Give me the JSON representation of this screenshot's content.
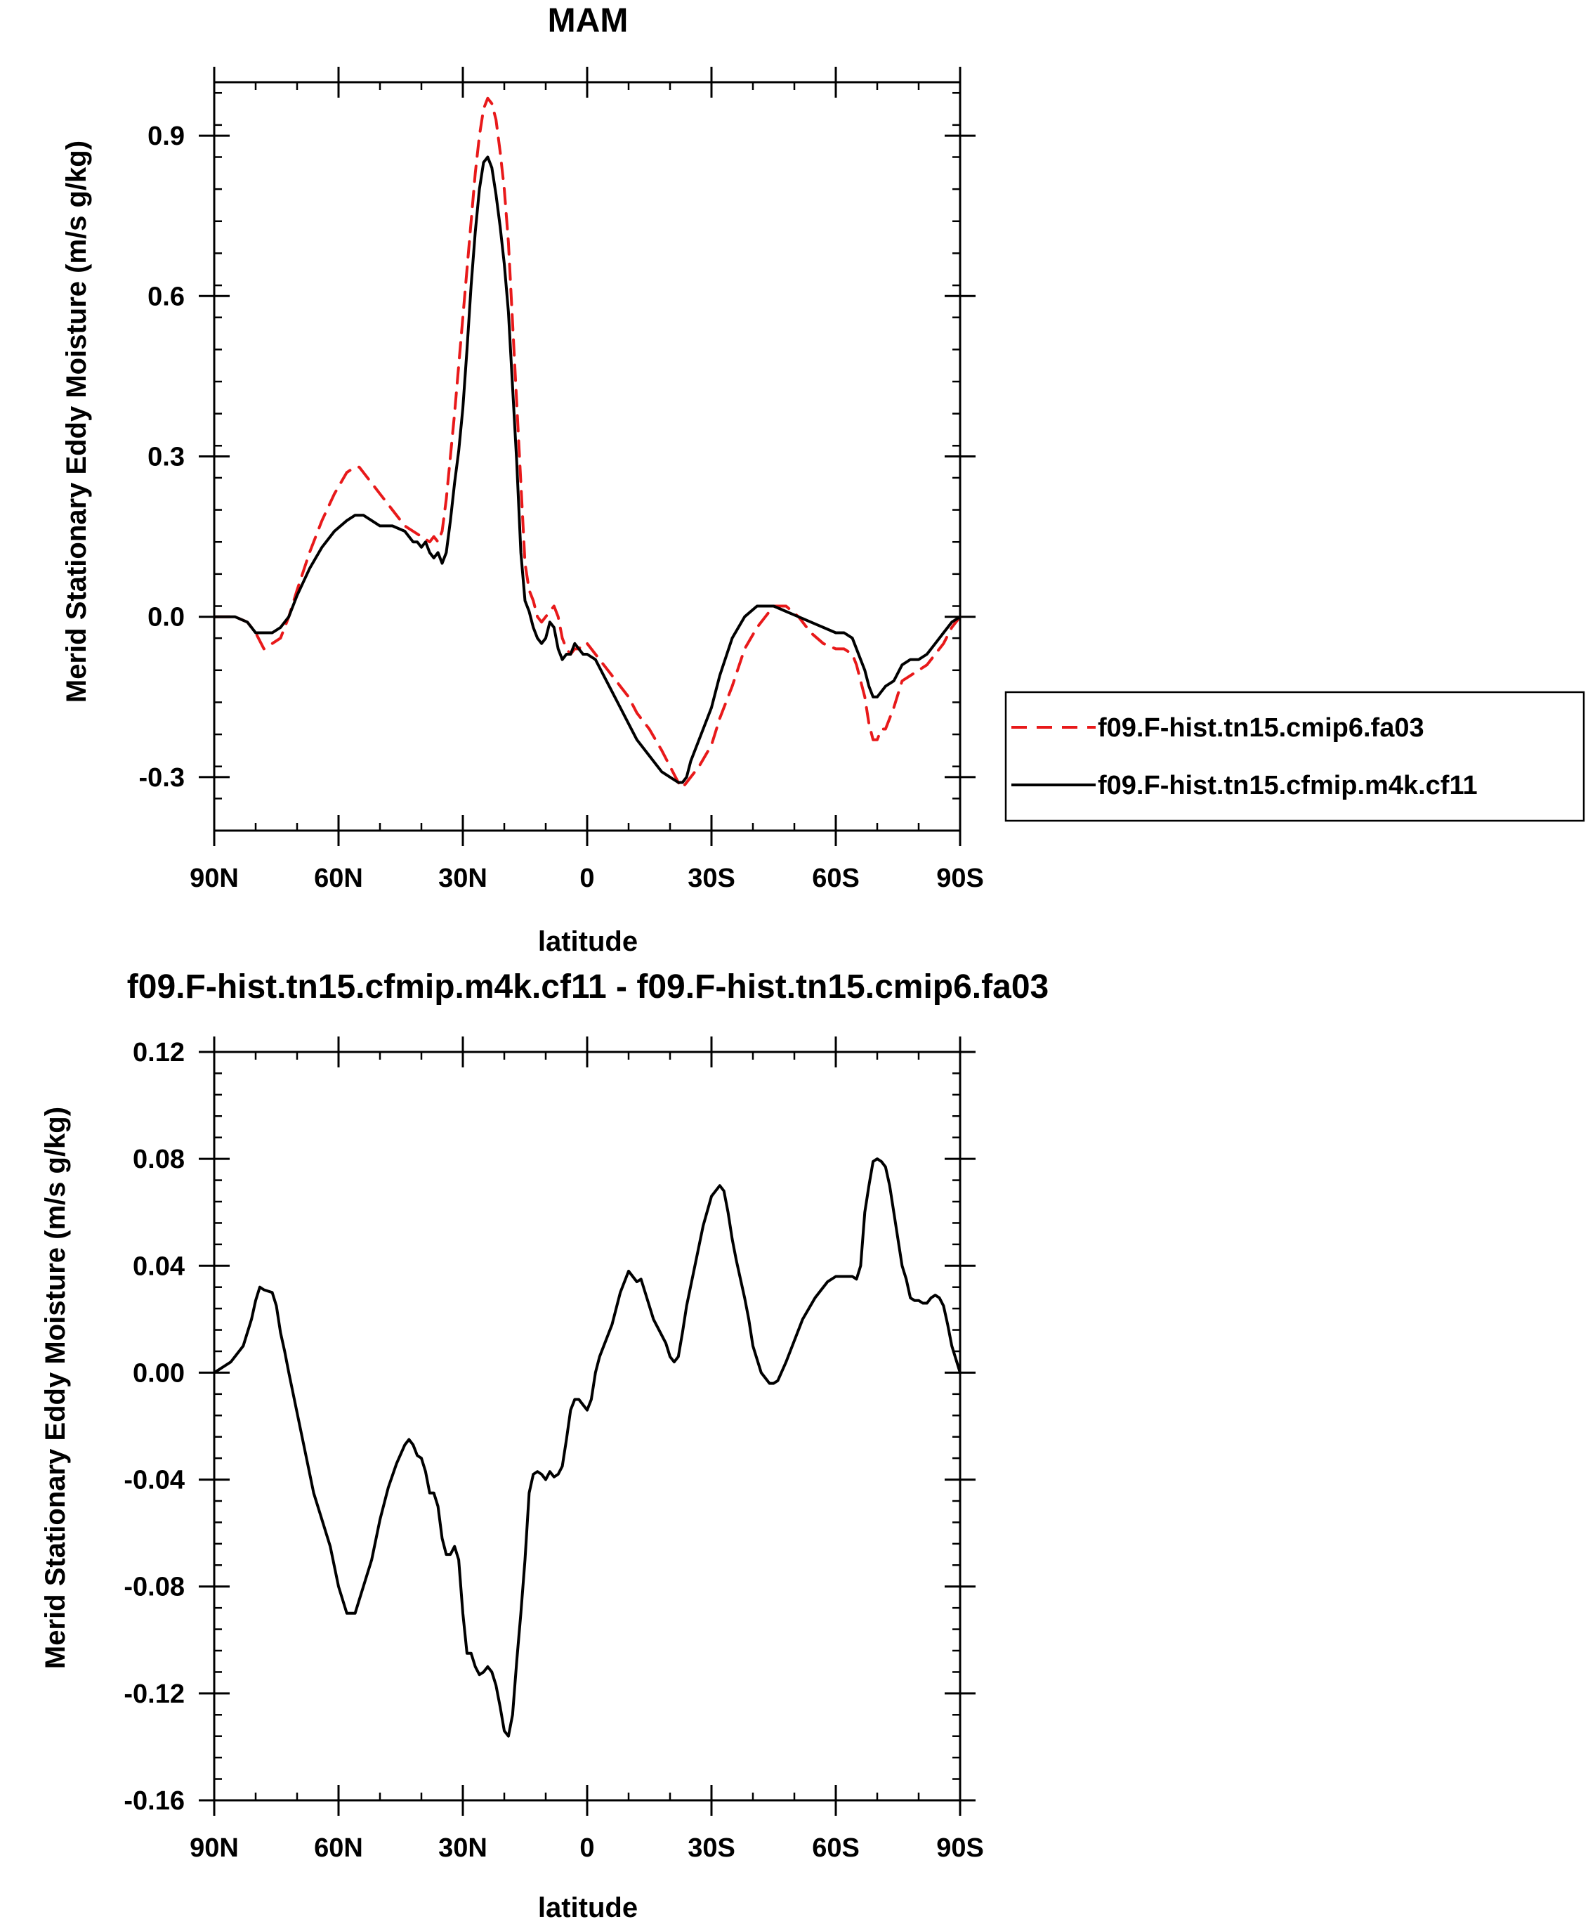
{
  "chart_data": [
    {
      "type": "line",
      "title": "MAM",
      "xlabel": "latitude",
      "ylabel": "Merid Stationary Eddy Moisture (m/s g/kg)",
      "xlim": [
        90,
        -90
      ],
      "ylim": [
        -0.4,
        1.0
      ],
      "xticks": [
        90,
        60,
        30,
        0,
        -30,
        -60,
        -90
      ],
      "xtick_labels": [
        "90N",
        "60N",
        "30N",
        "0",
        "30S",
        "60S",
        "90S"
      ],
      "yticks": [
        -0.3,
        0.0,
        0.3,
        0.6,
        0.9
      ],
      "ytick_labels": [
        "-0.3",
        "0.0",
        "0.3",
        "0.6",
        "0.9"
      ],
      "grid": false,
      "legend_position": "right-outside",
      "series": [
        {
          "name": "f09.F-hist.tn15.cmip6.fa03",
          "color": "#e8191a",
          "dash": "dashed",
          "x": [
            90,
            85,
            82,
            80,
            78,
            76,
            74,
            72,
            70,
            67,
            64,
            61,
            58,
            56,
            55,
            54,
            52,
            50,
            47,
            44,
            42,
            40,
            38,
            37,
            36,
            35,
            34,
            33,
            32,
            31,
            30,
            29,
            28,
            27,
            26,
            25,
            24,
            23,
            22,
            21,
            20,
            19,
            18,
            17,
            16,
            15,
            14,
            13,
            12,
            11,
            10,
            9,
            8,
            7,
            6,
            5,
            4,
            3,
            2,
            1,
            0,
            -2,
            -4,
            -6,
            -8,
            -10,
            -12,
            -15,
            -18,
            -20,
            -22,
            -23,
            -24,
            -25,
            -27,
            -30,
            -32,
            -35,
            -38,
            -41,
            -43,
            -45,
            -48,
            -51,
            -54,
            -57,
            -60,
            -62,
            -64,
            -65,
            -67,
            -68,
            -69,
            -70,
            -71,
            -72,
            -74,
            -76,
            -78,
            -80,
            -82,
            -84,
            -86,
            -88,
            -90
          ],
          "y": [
            0.0,
            0.0,
            -0.01,
            -0.03,
            -0.06,
            -0.05,
            -0.04,
            0.0,
            0.05,
            0.12,
            0.18,
            0.23,
            0.27,
            0.28,
            0.28,
            0.27,
            0.25,
            0.23,
            0.2,
            0.17,
            0.16,
            0.15,
            0.14,
            0.15,
            0.14,
            0.16,
            0.22,
            0.3,
            0.38,
            0.47,
            0.56,
            0.65,
            0.74,
            0.83,
            0.9,
            0.95,
            0.97,
            0.96,
            0.93,
            0.87,
            0.8,
            0.7,
            0.55,
            0.4,
            0.25,
            0.1,
            0.05,
            0.03,
            0.0,
            -0.01,
            0.0,
            0.01,
            0.02,
            0.0,
            -0.04,
            -0.06,
            -0.07,
            -0.06,
            -0.06,
            -0.05,
            -0.05,
            -0.07,
            -0.09,
            -0.11,
            -0.13,
            -0.15,
            -0.18,
            -0.21,
            -0.25,
            -0.28,
            -0.31,
            -0.32,
            -0.31,
            -0.3,
            -0.28,
            -0.24,
            -0.19,
            -0.13,
            -0.06,
            -0.02,
            0.0,
            0.02,
            0.02,
            0.0,
            -0.03,
            -0.05,
            -0.06,
            -0.06,
            -0.07,
            -0.09,
            -0.15,
            -0.2,
            -0.23,
            -0.23,
            -0.21,
            -0.21,
            -0.17,
            -0.12,
            -0.11,
            -0.1,
            -0.09,
            -0.07,
            -0.05,
            -0.02,
            0.0
          ]
        },
        {
          "name": "f09.F-hist.tn15.cfmip.m4k.cf11",
          "color": "#000000",
          "dash": "solid",
          "x": [
            90,
            85,
            82,
            80,
            78,
            76,
            74,
            72,
            70,
            67,
            64,
            61,
            58,
            56,
            55,
            54,
            52,
            50,
            47,
            44,
            42,
            41,
            40,
            39,
            38,
            37,
            36,
            35,
            34,
            33,
            32,
            31,
            30,
            29,
            28,
            27,
            26,
            25,
            24,
            23,
            22,
            21,
            20,
            19,
            18,
            17,
            16,
            15,
            14,
            13,
            12,
            11,
            10,
            9,
            8,
            7,
            6,
            5,
            4,
            3,
            2,
            1,
            0,
            -2,
            -4,
            -6,
            -8,
            -10,
            -12,
            -15,
            -18,
            -20,
            -22,
            -23,
            -24,
            -25,
            -27,
            -30,
            -32,
            -35,
            -38,
            -41,
            -43,
            -45,
            -48,
            -51,
            -54,
            -57,
            -60,
            -62,
            -64,
            -65,
            -66,
            -67,
            -68,
            -69,
            -70,
            -71,
            -72,
            -74,
            -76,
            -78,
            -80,
            -82,
            -84,
            -86,
            -88,
            -90
          ],
          "y": [
            0.0,
            0.0,
            -0.01,
            -0.03,
            -0.03,
            -0.03,
            -0.02,
            0.0,
            0.04,
            0.09,
            0.13,
            0.16,
            0.18,
            0.19,
            0.19,
            0.19,
            0.18,
            0.17,
            0.17,
            0.16,
            0.14,
            0.14,
            0.13,
            0.14,
            0.12,
            0.11,
            0.12,
            0.1,
            0.12,
            0.18,
            0.25,
            0.31,
            0.39,
            0.5,
            0.62,
            0.72,
            0.8,
            0.85,
            0.86,
            0.84,
            0.79,
            0.73,
            0.66,
            0.57,
            0.43,
            0.29,
            0.12,
            0.03,
            0.01,
            -0.02,
            -0.04,
            -0.05,
            -0.04,
            -0.01,
            -0.02,
            -0.06,
            -0.08,
            -0.07,
            -0.07,
            -0.05,
            -0.06,
            -0.07,
            -0.07,
            -0.08,
            -0.11,
            -0.14,
            -0.17,
            -0.2,
            -0.23,
            -0.26,
            -0.29,
            -0.3,
            -0.31,
            -0.31,
            -0.3,
            -0.27,
            -0.23,
            -0.17,
            -0.11,
            -0.04,
            0.0,
            0.02,
            0.02,
            0.02,
            0.01,
            0.0,
            -0.01,
            -0.02,
            -0.03,
            -0.03,
            -0.04,
            -0.06,
            -0.08,
            -0.1,
            -0.13,
            -0.15,
            -0.15,
            -0.14,
            -0.13,
            -0.12,
            -0.09,
            -0.08,
            -0.08,
            -0.07,
            -0.05,
            -0.03,
            -0.01,
            0.0
          ]
        }
      ]
    },
    {
      "type": "line",
      "title": "f09.F-hist.tn15.cfmip.m4k.cf11 - f09.F-hist.tn15.cmip6.fa03",
      "xlabel": "latitude",
      "ylabel": "Merid Stationary Eddy Moisture (m/s g/kg)",
      "xlim": [
        90,
        -90
      ],
      "ylim": [
        -0.16,
        0.12
      ],
      "xticks": [
        90,
        60,
        30,
        0,
        -30,
        -60,
        -90
      ],
      "xtick_labels": [
        "90N",
        "60N",
        "30N",
        "0",
        "30S",
        "60S",
        "90S"
      ],
      "yticks": [
        -0.16,
        -0.12,
        -0.08,
        -0.04,
        0.0,
        0.04,
        0.08,
        0.12
      ],
      "ytick_labels": [
        "-0.16",
        "-0.12",
        "-0.08",
        "-0.04",
        "0.00",
        "0.04",
        "0.08",
        "0.12"
      ],
      "grid": false,
      "series": [
        {
          "color": "#000000",
          "dash": "solid",
          "x": [
            90,
            86,
            83,
            81,
            80,
            79,
            78,
            76,
            75,
            74,
            73,
            72,
            70,
            68,
            66,
            64,
            62,
            60,
            58,
            56,
            55,
            54,
            52,
            50,
            48,
            46,
            44,
            43,
            42,
            41,
            40,
            39,
            38,
            37,
            36,
            35,
            34,
            33,
            32,
            31,
            30,
            29,
            28,
            27,
            26,
            25,
            24,
            23,
            22,
            21,
            20,
            19,
            18,
            17,
            16,
            15,
            14,
            13,
            12,
            11,
            10,
            9,
            8,
            7,
            6,
            5,
            4,
            3,
            2,
            1,
            0,
            -1,
            -2,
            -3,
            -4,
            -5,
            -6,
            -8,
            -10,
            -12,
            -13,
            -14,
            -15,
            -16,
            -17,
            -18,
            -19,
            -20,
            -21,
            -22,
            -23,
            -24,
            -26,
            -28,
            -30,
            -32,
            -33,
            -34,
            -35,
            -36,
            -37,
            -38,
            -39,
            -40,
            -42,
            -44,
            -45,
            -46,
            -48,
            -50,
            -52,
            -55,
            -58,
            -60,
            -62,
            -64,
            -65,
            -66,
            -67,
            -68,
            -69,
            -70,
            -71,
            -72,
            -73,
            -74,
            -75,
            -76,
            -77,
            -78,
            -79,
            -80,
            -81,
            -82,
            -83,
            -84,
            -85,
            -86,
            -87,
            -88,
            -89,
            -90
          ],
          "y": [
            0.0,
            0.004,
            0.01,
            0.02,
            0.027,
            0.032,
            0.031,
            0.03,
            0.025,
            0.015,
            0.008,
            0.0,
            -0.015,
            -0.03,
            -0.045,
            -0.055,
            -0.065,
            -0.08,
            -0.09,
            -0.09,
            -0.085,
            -0.08,
            -0.07,
            -0.055,
            -0.043,
            -0.034,
            -0.027,
            -0.025,
            -0.027,
            -0.031,
            -0.032,
            -0.037,
            -0.045,
            -0.045,
            -0.05,
            -0.062,
            -0.068,
            -0.068,
            -0.065,
            -0.07,
            -0.09,
            -0.105,
            -0.105,
            -0.11,
            -0.113,
            -0.112,
            -0.11,
            -0.112,
            -0.117,
            -0.125,
            -0.134,
            -0.136,
            -0.128,
            -0.108,
            -0.09,
            -0.07,
            -0.045,
            -0.038,
            -0.037,
            -0.038,
            -0.04,
            -0.037,
            -0.039,
            -0.038,
            -0.035,
            -0.025,
            -0.014,
            -0.01,
            -0.01,
            -0.012,
            -0.014,
            -0.01,
            0.0,
            0.006,
            0.01,
            0.014,
            0.018,
            0.03,
            0.038,
            0.034,
            0.035,
            0.03,
            0.025,
            0.02,
            0.017,
            0.014,
            0.011,
            0.006,
            0.004,
            0.006,
            0.015,
            0.025,
            0.04,
            0.055,
            0.066,
            0.07,
            0.068,
            0.06,
            0.05,
            0.042,
            0.035,
            0.028,
            0.02,
            0.01,
            0.0,
            -0.004,
            -0.004,
            -0.003,
            0.004,
            0.012,
            0.02,
            0.028,
            0.034,
            0.036,
            0.036,
            0.036,
            0.035,
            0.04,
            0.06,
            0.07,
            0.079,
            0.08,
            0.079,
            0.077,
            0.07,
            0.06,
            0.05,
            0.04,
            0.035,
            0.028,
            0.027,
            0.027,
            0.026,
            0.026,
            0.028,
            0.029,
            0.028,
            0.025,
            0.018,
            0.01,
            0.005,
            0.0
          ]
        }
      ]
    }
  ]
}
